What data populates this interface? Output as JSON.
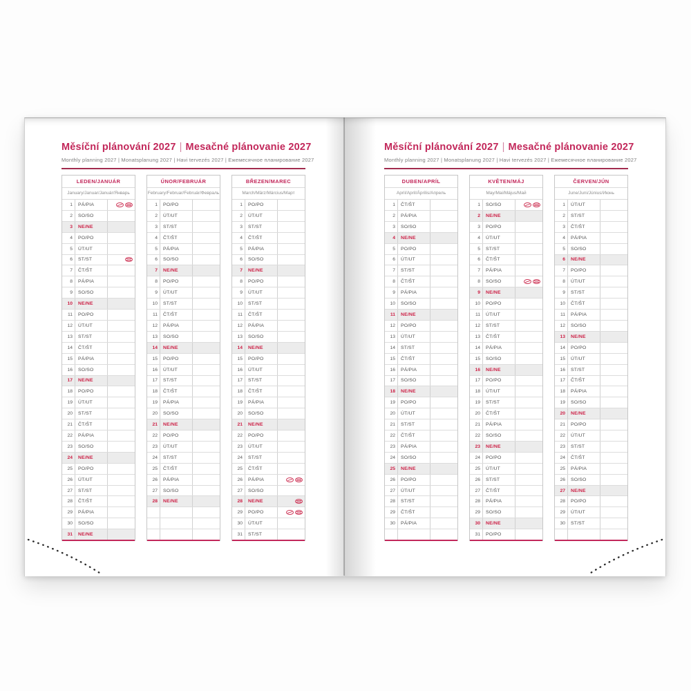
{
  "header": {
    "title_cz": "Měsíční plánování 2027",
    "divider": "|",
    "title_sk": "Mesačné plánovanie 2027",
    "subtitle": "Monthly planning 2027 | Monatsplanung 2027 | Havi tervezés 2027 | Ежемесячное планирование 2027"
  },
  "colors": {
    "accent": "#c2275a",
    "sunday_red": "#cc1f45",
    "flag_icon": "#cd3355",
    "sunday_row_bg": "#ececec"
  },
  "weekday_labels": {
    "monday": "PO/PO",
    "tuesday": "ÚT/UT",
    "wednesday": "ST/ST",
    "thursday": "ČT/ŠT",
    "friday": "PÁ/PIA",
    "saturday": "SO/SO",
    "sunday": "NE/NE"
  },
  "icon_legend": {
    "cz": "czech-holiday-flag",
    "sk": "slovak-holiday-flag"
  },
  "months": [
    {
      "title": "LEDEN/JANUÁR",
      "subtitle": "January/Januar/Január/Январь",
      "rows": [
        [
          1,
          "PÁ/PIA",
          [
            "cz",
            "sk"
          ]
        ],
        [
          2,
          "SO/SO"
        ],
        [
          3,
          "NE/NE"
        ],
        [
          4,
          "PO/PO"
        ],
        [
          5,
          "ÚT/UT"
        ],
        [
          6,
          "ST/ST",
          [
            "sk"
          ]
        ],
        [
          7,
          "ČT/ŠT"
        ],
        [
          8,
          "PÁ/PIA"
        ],
        [
          9,
          "SO/SO"
        ],
        [
          10,
          "NE/NE"
        ],
        [
          11,
          "PO/PO"
        ],
        [
          12,
          "ÚT/UT"
        ],
        [
          13,
          "ST/ST"
        ],
        [
          14,
          "ČT/ŠT"
        ],
        [
          15,
          "PÁ/PIA"
        ],
        [
          16,
          "SO/SO"
        ],
        [
          17,
          "NE/NE"
        ],
        [
          18,
          "PO/PO"
        ],
        [
          19,
          "ÚT/UT"
        ],
        [
          20,
          "ST/ST"
        ],
        [
          21,
          "ČT/ŠT"
        ],
        [
          22,
          "PÁ/PIA"
        ],
        [
          23,
          "SO/SO"
        ],
        [
          24,
          "NE/NE"
        ],
        [
          25,
          "PO/PO"
        ],
        [
          26,
          "ÚT/UT"
        ],
        [
          27,
          "ST/ST"
        ],
        [
          28,
          "ČT/ŠT"
        ],
        [
          29,
          "PÁ/PIA"
        ],
        [
          30,
          "SO/SO"
        ],
        [
          31,
          "NE/NE"
        ]
      ]
    },
    {
      "title": "ÚNOR/FEBRUÁR",
      "subtitle": "February/Februar/Február/Февраль",
      "rows": [
        [
          1,
          "PO/PO"
        ],
        [
          2,
          "ÚT/UT"
        ],
        [
          3,
          "ST/ST"
        ],
        [
          4,
          "ČT/ŠT"
        ],
        [
          5,
          "PÁ/PIA"
        ],
        [
          6,
          "SO/SO"
        ],
        [
          7,
          "NE/NE"
        ],
        [
          8,
          "PO/PO"
        ],
        [
          9,
          "ÚT/UT"
        ],
        [
          10,
          "ST/ST"
        ],
        [
          11,
          "ČT/ŠT"
        ],
        [
          12,
          "PÁ/PIA"
        ],
        [
          13,
          "SO/SO"
        ],
        [
          14,
          "NE/NE"
        ],
        [
          15,
          "PO/PO"
        ],
        [
          16,
          "ÚT/UT"
        ],
        [
          17,
          "ST/ST"
        ],
        [
          18,
          "ČT/ŠT"
        ],
        [
          19,
          "PÁ/PIA"
        ],
        [
          20,
          "SO/SO"
        ],
        [
          21,
          "NE/NE"
        ],
        [
          22,
          "PO/PO"
        ],
        [
          23,
          "ÚT/UT"
        ],
        [
          24,
          "ST/ST"
        ],
        [
          25,
          "ČT/ŠT"
        ],
        [
          26,
          "PÁ/PIA"
        ],
        [
          27,
          "SO/SO"
        ],
        [
          28,
          "NE/NE"
        ],
        [],
        [],
        []
      ]
    },
    {
      "title": "BŘEZEN/MAREC",
      "subtitle": "March/März/Március/Март",
      "rows": [
        [
          1,
          "PO/PO"
        ],
        [
          2,
          "ÚT/UT"
        ],
        [
          3,
          "ST/ST"
        ],
        [
          4,
          "ČT/ŠT"
        ],
        [
          5,
          "PÁ/PIA"
        ],
        [
          6,
          "SO/SO"
        ],
        [
          7,
          "NE/NE"
        ],
        [
          8,
          "PO/PO"
        ],
        [
          9,
          "ÚT/UT"
        ],
        [
          10,
          "ST/ST"
        ],
        [
          11,
          "ČT/ŠT"
        ],
        [
          12,
          "PÁ/PIA"
        ],
        [
          13,
          "SO/SO"
        ],
        [
          14,
          "NE/NE"
        ],
        [
          15,
          "PO/PO"
        ],
        [
          16,
          "ÚT/UT"
        ],
        [
          17,
          "ST/ST"
        ],
        [
          18,
          "ČT/ŠT"
        ],
        [
          19,
          "PÁ/PIA"
        ],
        [
          20,
          "SO/SO"
        ],
        [
          21,
          "NE/NE"
        ],
        [
          22,
          "PO/PO"
        ],
        [
          23,
          "ÚT/UT"
        ],
        [
          24,
          "ST/ST"
        ],
        [
          25,
          "ČT/ŠT"
        ],
        [
          26,
          "PÁ/PIA",
          [
            "cz",
            "sk"
          ]
        ],
        [
          27,
          "SO/SO"
        ],
        [
          28,
          "NE/NE",
          [
            "sk"
          ]
        ],
        [
          29,
          "PO/PO",
          [
            "cz",
            "sk"
          ]
        ],
        [
          30,
          "ÚT/UT"
        ],
        [
          31,
          "ST/ST"
        ]
      ]
    },
    {
      "title": "DUBEN/APRÍL",
      "subtitle": "April/April/Április/Апрель",
      "rows": [
        [
          1,
          "ČT/ŠT"
        ],
        [
          2,
          "PÁ/PIA"
        ],
        [
          3,
          "SO/SO"
        ],
        [
          4,
          "NE/NE"
        ],
        [
          5,
          "PO/PO"
        ],
        [
          6,
          "ÚT/UT"
        ],
        [
          7,
          "ST/ST"
        ],
        [
          8,
          "ČT/ŠT"
        ],
        [
          9,
          "PÁ/PIA"
        ],
        [
          10,
          "SO/SO"
        ],
        [
          11,
          "NE/NE"
        ],
        [
          12,
          "PO/PO"
        ],
        [
          13,
          "ÚT/UT"
        ],
        [
          14,
          "ST/ST"
        ],
        [
          15,
          "ČT/ŠT"
        ],
        [
          16,
          "PÁ/PIA"
        ],
        [
          17,
          "SO/SO"
        ],
        [
          18,
          "NE/NE"
        ],
        [
          19,
          "PO/PO"
        ],
        [
          20,
          "ÚT/UT"
        ],
        [
          21,
          "ST/ST"
        ],
        [
          22,
          "ČT/ŠT"
        ],
        [
          23,
          "PÁ/PIA"
        ],
        [
          24,
          "SO/SO"
        ],
        [
          25,
          "NE/NE"
        ],
        [
          26,
          "PO/PO"
        ],
        [
          27,
          "ÚT/UT"
        ],
        [
          28,
          "ST/ST"
        ],
        [
          29,
          "ČT/ŠT"
        ],
        [
          30,
          "PÁ/PIA"
        ],
        []
      ]
    },
    {
      "title": "KVĚTEN/MÁJ",
      "subtitle": "May/Mai/Május/Май",
      "rows": [
        [
          1,
          "SO/SO",
          [
            "cz",
            "sk"
          ]
        ],
        [
          2,
          "NE/NE"
        ],
        [
          3,
          "PO/PO"
        ],
        [
          4,
          "ÚT/UT"
        ],
        [
          5,
          "ST/ST"
        ],
        [
          6,
          "ČT/ŠT"
        ],
        [
          7,
          "PÁ/PIA"
        ],
        [
          8,
          "SO/SO",
          [
            "cz",
            "sk"
          ]
        ],
        [
          9,
          "NE/NE"
        ],
        [
          10,
          "PO/PO"
        ],
        [
          11,
          "ÚT/UT"
        ],
        [
          12,
          "ST/ST"
        ],
        [
          13,
          "ČT/ŠT"
        ],
        [
          14,
          "PÁ/PIA"
        ],
        [
          15,
          "SO/SO"
        ],
        [
          16,
          "NE/NE"
        ],
        [
          17,
          "PO/PO"
        ],
        [
          18,
          "ÚT/UT"
        ],
        [
          19,
          "ST/ST"
        ],
        [
          20,
          "ČT/ŠT"
        ],
        [
          21,
          "PÁ/PIA"
        ],
        [
          22,
          "SO/SO"
        ],
        [
          23,
          "NE/NE"
        ],
        [
          24,
          "PO/PO"
        ],
        [
          25,
          "ÚT/UT"
        ],
        [
          26,
          "ST/ST"
        ],
        [
          27,
          "ČT/ŠT"
        ],
        [
          28,
          "PÁ/PIA"
        ],
        [
          29,
          "SO/SO"
        ],
        [
          30,
          "NE/NE"
        ],
        [
          31,
          "PO/PO"
        ]
      ]
    },
    {
      "title": "ČERVEN/JÚN",
      "subtitle": "June/Juni/Június/Июнь",
      "rows": [
        [
          1,
          "ÚT/UT"
        ],
        [
          2,
          "ST/ST"
        ],
        [
          3,
          "ČT/ŠT"
        ],
        [
          4,
          "PÁ/PIA"
        ],
        [
          5,
          "SO/SO"
        ],
        [
          6,
          "NE/NE"
        ],
        [
          7,
          "PO/PO"
        ],
        [
          8,
          "ÚT/UT"
        ],
        [
          9,
          "ST/ST"
        ],
        [
          10,
          "ČT/ŠT"
        ],
        [
          11,
          "PÁ/PIA"
        ],
        [
          12,
          "SO/SO"
        ],
        [
          13,
          "NE/NE"
        ],
        [
          14,
          "PO/PO"
        ],
        [
          15,
          "ÚT/UT"
        ],
        [
          16,
          "ST/ST"
        ],
        [
          17,
          "ČT/ŠT"
        ],
        [
          18,
          "PÁ/PIA"
        ],
        [
          19,
          "SO/SO"
        ],
        [
          20,
          "NE/NE"
        ],
        [
          21,
          "PO/PO"
        ],
        [
          22,
          "ÚT/UT"
        ],
        [
          23,
          "ST/ST"
        ],
        [
          24,
          "ČT/ŠT"
        ],
        [
          25,
          "PÁ/PIA"
        ],
        [
          26,
          "SO/SO"
        ],
        [
          27,
          "NE/NE"
        ],
        [
          28,
          "PO/PO"
        ],
        [
          29,
          "ÚT/UT"
        ],
        [
          30,
          "ST/ST"
        ],
        []
      ]
    }
  ]
}
